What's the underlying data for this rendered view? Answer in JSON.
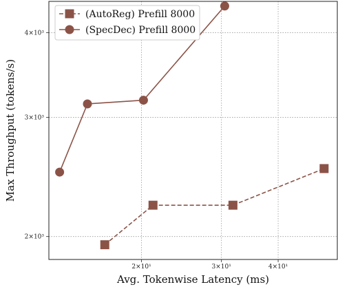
{
  "chart_data": {
    "type": "line",
    "xlabel": "Avg. Tokenwise Latency (ms)",
    "ylabel": "Max Throughput (tokens/s)",
    "xscale": "log",
    "yscale": "log",
    "xlim": [
      12.5,
      54
    ],
    "ylim": [
      1850,
      4450
    ],
    "grid": true,
    "legend_position": "top-left",
    "x_ticks": [
      {
        "value": 20,
        "label": "2×10¹"
      },
      {
        "value": 30,
        "label": "3×10¹"
      },
      {
        "value": 40,
        "label": "4×10¹"
      }
    ],
    "y_ticks": [
      {
        "value": 2000,
        "label": "2×10³"
      },
      {
        "value": 3000,
        "label": "3×10³"
      },
      {
        "value": 4000,
        "label": "4×10³"
      }
    ],
    "series": [
      {
        "name": "(AutoReg) Prefill 8000",
        "marker": "square",
        "linestyle": "dashed",
        "color": "#8B5347",
        "points": [
          [
            16.6,
            1945
          ],
          [
            21.2,
            2225
          ],
          [
            31.8,
            2225
          ],
          [
            50.5,
            2520
          ]
        ]
      },
      {
        "name": "(SpecDec) Prefill 8000",
        "marker": "circle",
        "linestyle": "solid",
        "color": "#8B5347",
        "points": [
          [
            13.2,
            2490
          ],
          [
            15.2,
            3140
          ],
          [
            20.2,
            3180
          ],
          [
            30.5,
            4380
          ]
        ]
      }
    ]
  }
}
